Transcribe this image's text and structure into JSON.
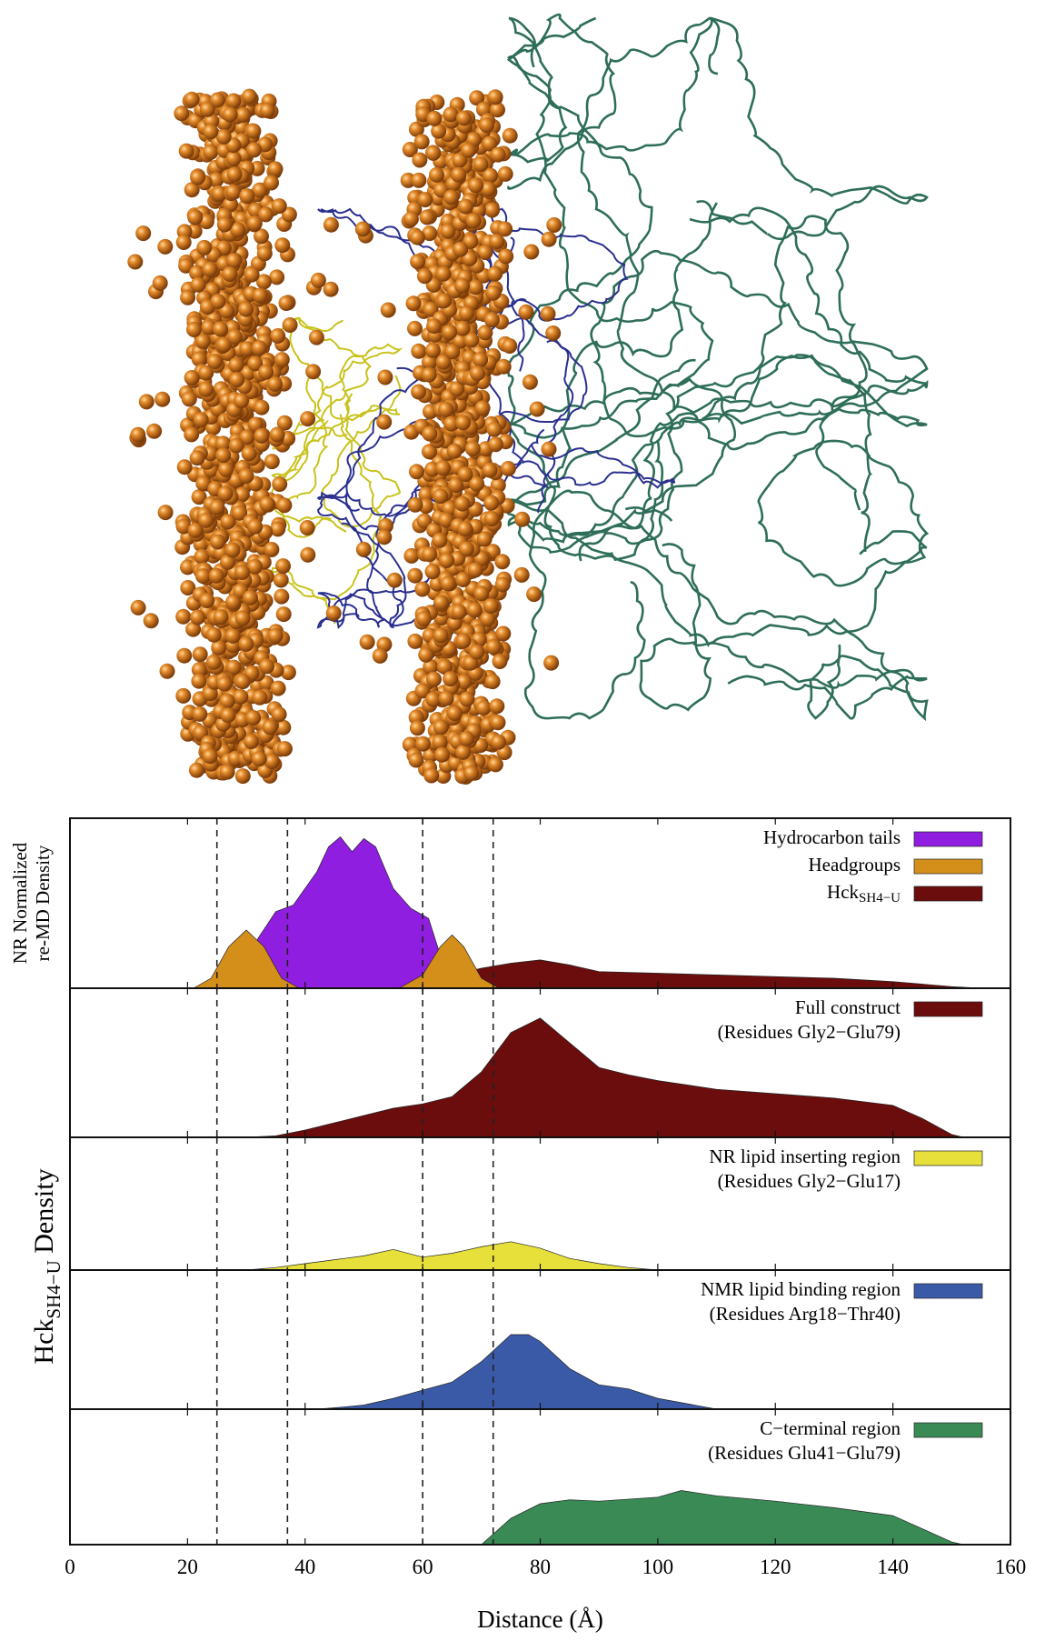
{
  "chart_data": [
    {
      "type": "area",
      "ylabel": [
        "NR Normalized",
        "re-MD Density"
      ],
      "ylim": [
        0,
        1
      ],
      "legend": "top-right",
      "series": [
        {
          "name": "Hck",
          "name_subscript": "SH4−U",
          "color": "#6b0d0d",
          "legend_order": 2,
          "x": [
            50,
            55,
            60,
            65,
            70,
            75,
            80,
            85,
            90,
            100,
            110,
            120,
            130,
            140,
            150,
            155
          ],
          "values": [
            0,
            0.02,
            0.05,
            0.08,
            0.12,
            0.15,
            0.17,
            0.14,
            0.1,
            0.09,
            0.08,
            0.07,
            0.06,
            0.04,
            0.01,
            0
          ]
        },
        {
          "name": "Hydrocarbon tails",
          "color": "#8f1ee0",
          "legend_order": 0,
          "x": [
            28,
            32,
            35,
            38,
            42,
            44,
            46,
            48,
            50,
            52,
            55,
            58,
            61,
            63,
            65
          ],
          "values": [
            0,
            0.3,
            0.46,
            0.5,
            0.7,
            0.85,
            0.91,
            0.82,
            0.9,
            0.85,
            0.6,
            0.48,
            0.42,
            0.2,
            0
          ]
        },
        {
          "name": "Headgroups",
          "color": "#d48f1a",
          "legend_order": 1,
          "x": [
            21,
            24,
            27,
            30,
            33,
            36,
            39,
            47,
            56,
            60,
            63,
            65,
            67,
            70,
            73
          ],
          "values": [
            0,
            0.06,
            0.25,
            0.35,
            0.25,
            0.06,
            0,
            null,
            0,
            0.08,
            0.25,
            0.32,
            0.25,
            0.06,
            0
          ]
        }
      ]
    },
    {
      "type": "area",
      "ylim": [
        0,
        1
      ],
      "legend": "top-right",
      "series": [
        {
          "name": "Full construct",
          "subtitle": "(Residues Gly2−Glu79)",
          "color": "#6b0d0d",
          "x": [
            30,
            35,
            40,
            45,
            50,
            55,
            60,
            65,
            70,
            75,
            80,
            85,
            90,
            95,
            100,
            110,
            120,
            130,
            140,
            145,
            150,
            152
          ],
          "values": [
            0,
            0.01,
            0.05,
            0.1,
            0.15,
            0.2,
            0.23,
            0.28,
            0.45,
            0.72,
            0.82,
            0.65,
            0.48,
            0.43,
            0.39,
            0.33,
            0.3,
            0.27,
            0.22,
            0.13,
            0.02,
            0
          ]
        }
      ]
    },
    {
      "type": "area",
      "ylim": [
        0,
        1
      ],
      "legend": "top-right",
      "series": [
        {
          "name": "NR lipid inserting region",
          "subtitle": "(Residues Gly2−Glu17)",
          "color": "#e8e03a",
          "x": [
            30,
            35,
            40,
            45,
            50,
            55,
            60,
            65,
            70,
            75,
            80,
            85,
            90,
            95,
            100
          ],
          "values": [
            0,
            0.02,
            0.05,
            0.08,
            0.11,
            0.16,
            0.1,
            0.13,
            0.18,
            0.22,
            0.17,
            0.09,
            0.05,
            0.02,
            0
          ]
        }
      ]
    },
    {
      "type": "area",
      "ylim": [
        0,
        1
      ],
      "legend": "top-right",
      "series": [
        {
          "name": "NMR lipid binding region",
          "subtitle": "(Residues Arg18−Thr40)",
          "color": "#3a5aa8",
          "x": [
            42,
            45,
            50,
            55,
            60,
            65,
            70,
            75,
            78,
            80,
            85,
            90,
            95,
            100,
            105,
            110
          ],
          "values": [
            0,
            0.01,
            0.03,
            0.08,
            0.14,
            0.2,
            0.35,
            0.55,
            0.55,
            0.5,
            0.3,
            0.18,
            0.15,
            0.08,
            0.04,
            0
          ]
        }
      ]
    },
    {
      "type": "area",
      "ylim": [
        0,
        1
      ],
      "legend": "top-right",
      "series": [
        {
          "name": "C−terminal region",
          "subtitle": "(Residues Glu41−Glu79)",
          "color": "#3a8a55",
          "x": [
            70,
            75,
            80,
            85,
            90,
            100,
            104,
            110,
            120,
            130,
            140,
            145,
            150,
            152
          ],
          "values": [
            0,
            0.2,
            0.31,
            0.34,
            0.33,
            0.36,
            0.41,
            0.37,
            0.33,
            0.28,
            0.22,
            0.12,
            0.02,
            0
          ]
        }
      ]
    }
  ],
  "x_axis": {
    "label": "Distance (Å)",
    "xlim": [
      0,
      160
    ],
    "xticks": [
      0,
      20,
      40,
      60,
      80,
      100,
      120,
      140,
      160
    ],
    "reference_lines": [
      25,
      37,
      60,
      72
    ]
  },
  "shared_ylabel": {
    "text": "Hck",
    "subscript": "SH4−U",
    "suffix": " Density"
  }
}
